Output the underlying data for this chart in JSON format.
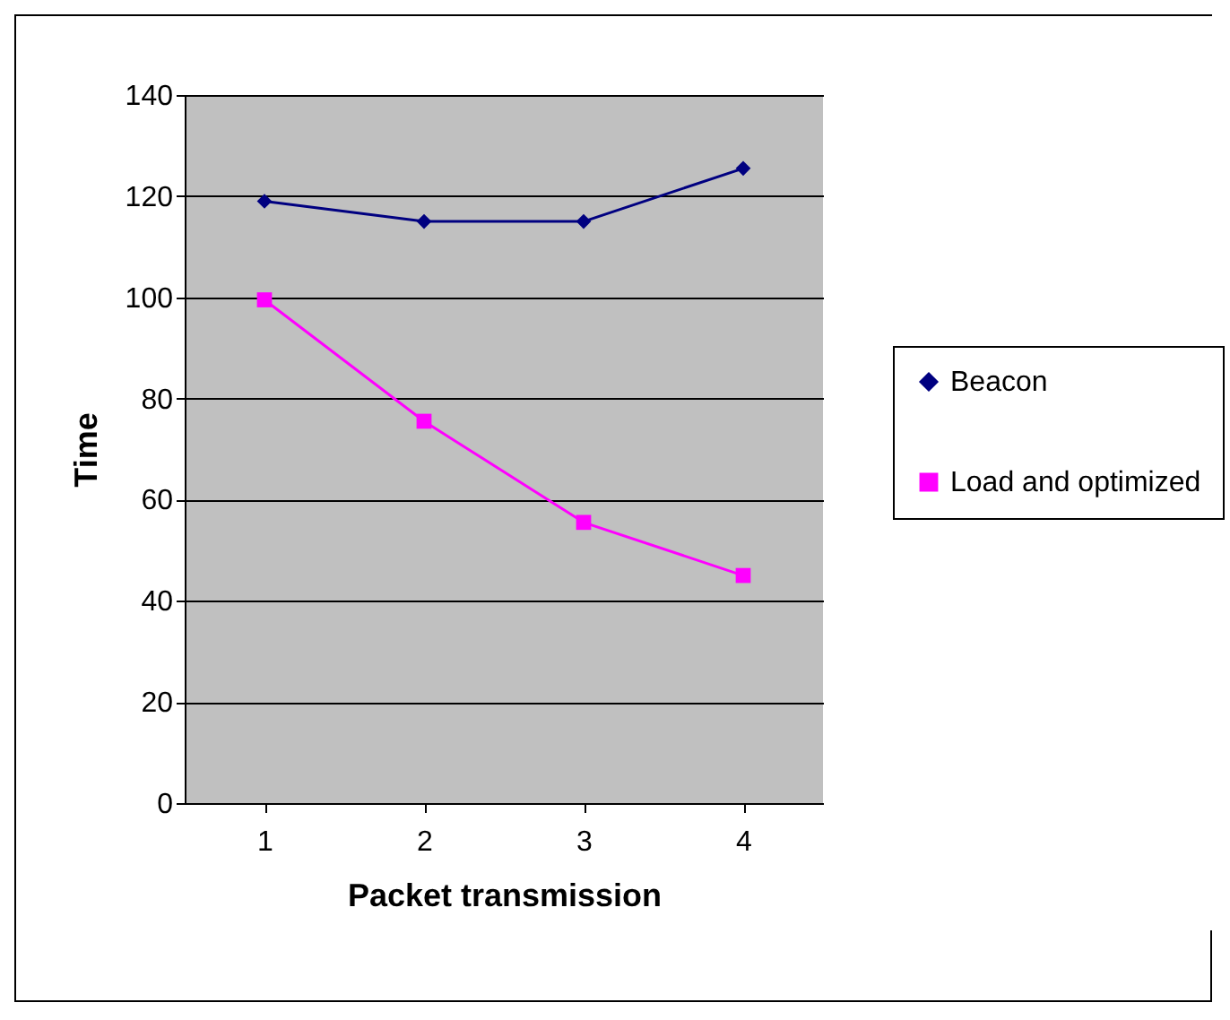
{
  "chart_data": {
    "type": "line",
    "xlabel": "Packet transmission",
    "ylabel": "Time",
    "categories": [
      "1",
      "2",
      "3",
      "4"
    ],
    "series": [
      {
        "name": "Beacon",
        "color": "#000080",
        "marker": "diamond",
        "values": [
          119,
          115,
          115,
          125.5
        ]
      },
      {
        "name": "Load and optimized",
        "color": "#ff00ff",
        "marker": "square",
        "values": [
          99.5,
          75.5,
          55.5,
          45
        ]
      }
    ],
    "ylim": [
      0,
      140
    ],
    "yticks": [
      0,
      20,
      40,
      60,
      80,
      100,
      120,
      140
    ],
    "grid": "y",
    "legend": "right"
  }
}
